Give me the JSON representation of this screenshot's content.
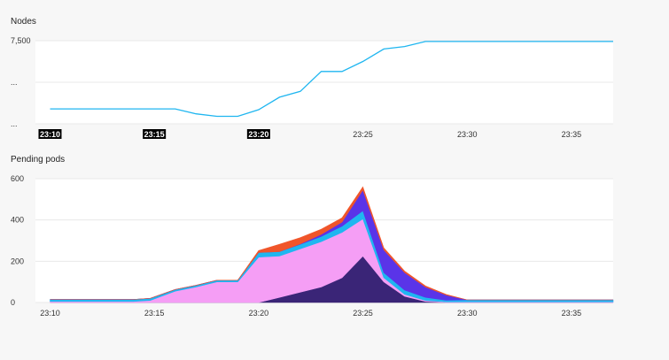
{
  "colors": {
    "page_bg": "#f7f7f7",
    "plot_bg": "#ffffff",
    "grid": "#e8e8e8",
    "axis_text": "#333333",
    "nodes_line": "#1fb6f0",
    "highlight_label_bg": "#000000",
    "highlight_label_fg": "#ffffff"
  },
  "chart_data": [
    {
      "type": "line",
      "title": "Nodes",
      "x_ticks": [
        "23:10",
        "23:15",
        "23:20",
        "23:25",
        "23:30",
        "23:35"
      ],
      "x_tick_minutes": [
        10,
        15,
        20,
        25,
        30,
        35
      ],
      "highlighted_x_ticks": [
        "23:10",
        "23:15",
        "23:20"
      ],
      "xlim": [
        9.3,
        37
      ],
      "y_ticks": [
        {
          "label": "7,500",
          "value": 7500
        },
        {
          "label": "...",
          "value": 5000
        },
        {
          "label": "...",
          "value": 2500
        }
      ],
      "ylim": [
        2500,
        7500
      ],
      "grid": true,
      "x_minutes": [
        10,
        15,
        16,
        17,
        18,
        19,
        20,
        21,
        22,
        23,
        24,
        25,
        26,
        27,
        28,
        37
      ],
      "values": [
        3400,
        3400,
        3400,
        3100,
        2950,
        2950,
        3350,
        4100,
        4450,
        5650,
        5650,
        6250,
        7000,
        7150,
        7450,
        7450
      ],
      "series_color": "#1fb6f0"
    },
    {
      "type": "area",
      "stacked": true,
      "title": "Pending pods",
      "x_ticks": [
        "23:10",
        "23:15",
        "23:20",
        "23:25",
        "23:30",
        "23:35"
      ],
      "x_tick_minutes": [
        10,
        15,
        20,
        25,
        30,
        35
      ],
      "xlim": [
        9.3,
        37
      ],
      "y_ticks": [
        {
          "label": "600",
          "value": 600
        },
        {
          "label": "400",
          "value": 400
        },
        {
          "label": "200",
          "value": 200
        },
        {
          "label": "0",
          "value": 0
        }
      ],
      "ylim": [
        0,
        600
      ],
      "grid": true,
      "x_minutes": [
        10,
        14,
        14.8,
        16,
        17,
        18,
        19,
        20,
        21,
        22,
        23,
        24,
        25,
        26,
        27,
        28,
        29,
        30,
        37
      ],
      "series": [
        {
          "color": "#3a2577",
          "values": [
            0,
            0,
            0,
            0,
            0,
            0,
            0,
            0,
            25,
            50,
            75,
            120,
            225,
            100,
            30,
            5,
            0,
            0,
            0
          ]
        },
        {
          "color": "#f59ef5",
          "values": [
            5,
            5,
            10,
            55,
            75,
            100,
            100,
            220,
            200,
            210,
            220,
            220,
            180,
            20,
            10,
            5,
            3,
            3,
            3
          ]
        },
        {
          "color": "#1fb6f0",
          "values": [
            10,
            10,
            10,
            8,
            8,
            8,
            8,
            22,
            22,
            22,
            25,
            30,
            40,
            25,
            20,
            15,
            8,
            10,
            10
          ]
        },
        {
          "color": "#5a34e8",
          "values": [
            0,
            0,
            0,
            0,
            0,
            0,
            0,
            0,
            0,
            2,
            10,
            20,
            100,
            110,
            85,
            50,
            25,
            0,
            0
          ]
        },
        {
          "color": "#f0552a",
          "values": [
            0,
            0,
            0,
            0,
            0,
            0,
            0,
            10,
            35,
            30,
            25,
            20,
            15,
            10,
            7,
            5,
            3,
            0,
            0
          ]
        }
      ]
    }
  ]
}
